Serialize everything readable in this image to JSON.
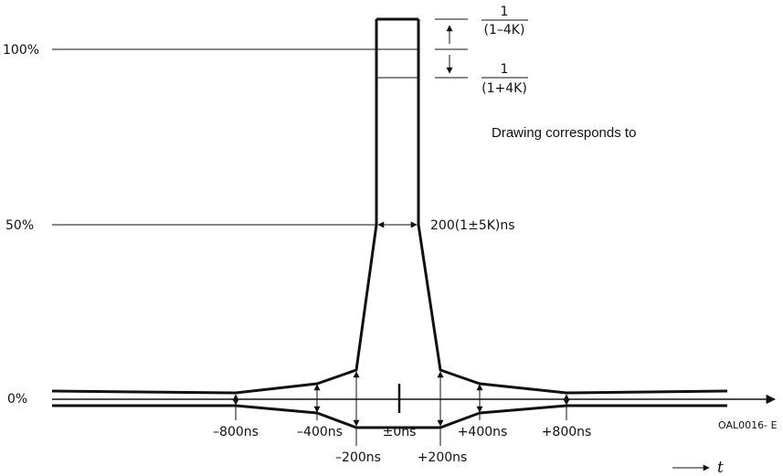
{
  "levels": {
    "full": "100%",
    "half": "50%",
    "zero": "0%"
  },
  "tolerance": {
    "upper_numerator": "1",
    "upper_denominator": "(1–4K)",
    "lower_numerator": "1",
    "lower_denominator": "(1+4K)"
  },
  "pulse_width": "200(1±5K)ns",
  "note": "Drawing corresponds to",
  "time_marks": {
    "m800": "–800ns",
    "m400": "–400ns",
    "m200": "–200ns",
    "zero": "±0ns",
    "p200": "+200ns",
    "p400": "+400ns",
    "p800": "+800ns"
  },
  "axis_label": "t",
  "figure_id": "OAL0016- E"
}
